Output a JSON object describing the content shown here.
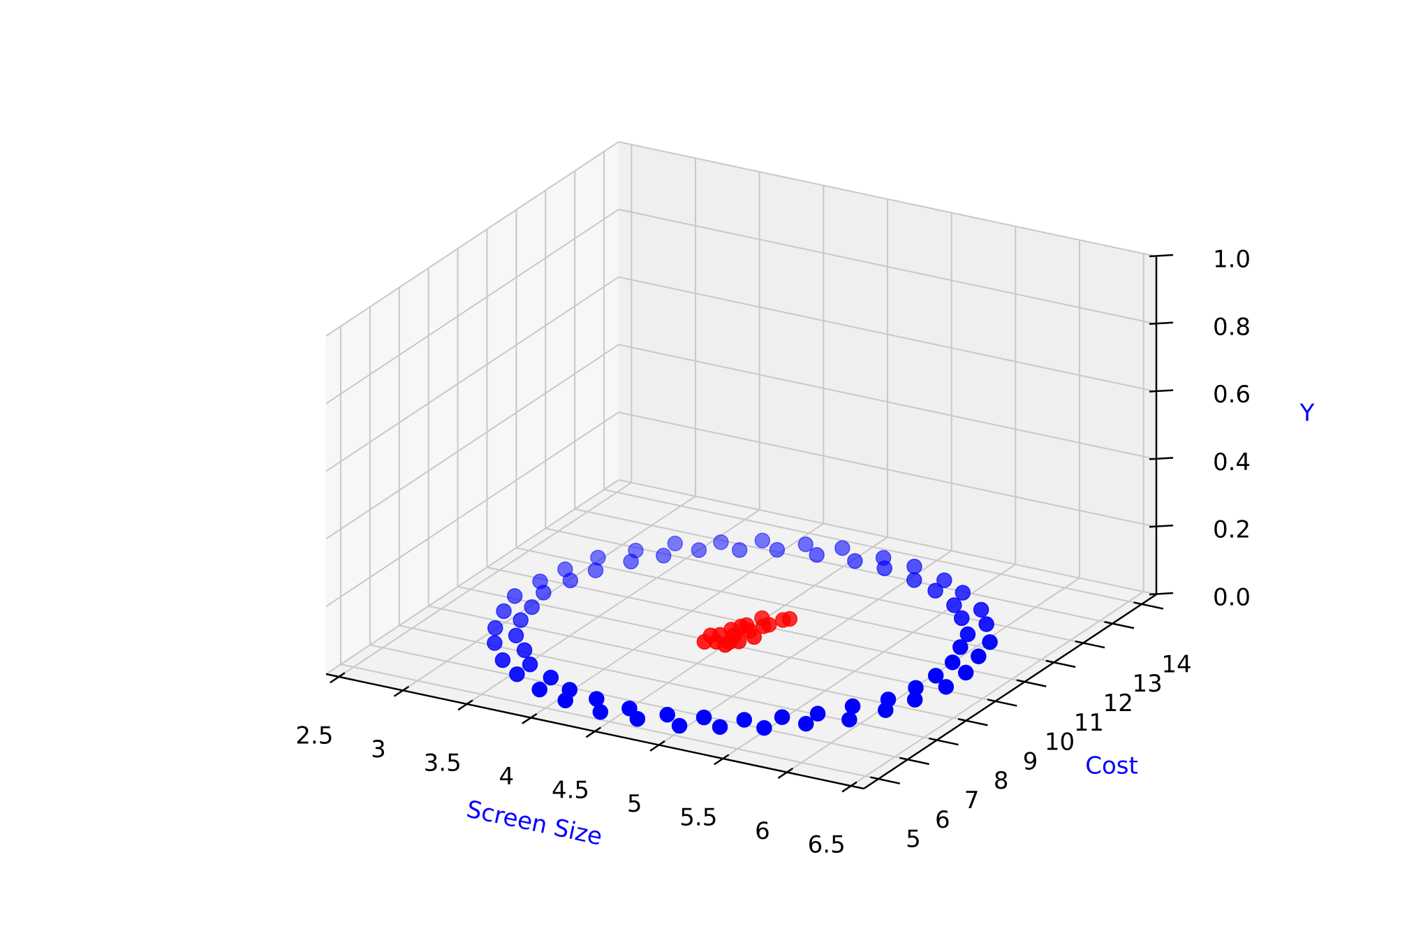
{
  "chart_data": {
    "type": "scatter3d",
    "x_label": "Screen Size",
    "y_label": "Cost",
    "z_label": "Y",
    "xlim": [
      2.4,
      6.6
    ],
    "ylim": [
      4.5,
      14.5
    ],
    "zlim": [
      0,
      1
    ],
    "xticks": [
      2.5,
      3,
      3.5,
      4,
      4.5,
      5,
      5.5,
      6,
      6.5
    ],
    "yticks": [
      5,
      6,
      7,
      8,
      9,
      10,
      11,
      12,
      13,
      14
    ],
    "zticks": [
      {
        "value": 0,
        "label": "0.0"
      },
      0.2,
      0.4,
      0.6,
      0.8,
      {
        "value": 1,
        "label": "1.0"
      }
    ],
    "grid": true,
    "depthshade": true,
    "series": [
      {
        "color": "#0000ff",
        "x": [
          6.02,
          6.0,
          5.91,
          5.84,
          5.66,
          5.5,
          5.26,
          5.04,
          4.76,
          4.52,
          4.24,
          3.96,
          3.74,
          3.5,
          3.34,
          3.2,
          3.07,
          3.01,
          2.96,
          3.02,
          3.07,
          3.18,
          3.36,
          3.52,
          3.76,
          3.98,
          4.22,
          4.5,
          4.78,
          5.02,
          5.28,
          5.48,
          5.66,
          5.8,
          5.95,
          6.01,
          6.17,
          6.1,
          6.04,
          5.86,
          5.7,
          5.44,
          5.22,
          4.92,
          4.66,
          4.33,
          4.08,
          3.79,
          3.56,
          3.3,
          3.13,
          2.97,
          2.88,
          2.84,
          2.82,
          2.89,
          2.99,
          3.12,
          3.32,
          3.53,
          3.8,
          4.05,
          4.36,
          4.64,
          4.95,
          5.2,
          5.47,
          5.68,
          5.9,
          6.03,
          6.11,
          6.18
        ],
        "y": [
          9.5,
          10.16,
          10.82,
          11.38,
          11.96,
          12.4,
          12.81,
          13.05,
          13.26,
          13.3,
          13.22,
          13.09,
          12.77,
          12.43,
          11.92,
          11.42,
          10.78,
          10.18,
          9.48,
          8.82,
          8.22,
          7.58,
          7.08,
          6.57,
          6.23,
          5.91,
          5.78,
          5.68,
          5.75,
          5.95,
          6.19,
          6.61,
          7.04,
          7.62,
          8.18,
          8.86,
          9.87,
          10.61,
          11.26,
          11.93,
          12.45,
          12.96,
          13.29,
          13.58,
          13.66,
          13.7,
          13.54,
          13.33,
          12.92,
          12.49,
          11.89,
          11.3,
          10.57,
          9.89,
          9.11,
          8.43,
          7.7,
          7.11,
          6.51,
          6.08,
          5.67,
          5.46,
          5.3,
          5.34,
          5.42,
          5.71,
          6.04,
          6.55,
          7.07,
          7.74,
          8.39,
          9.15
        ],
        "z": [
          0,
          0,
          0,
          0,
          0,
          0,
          0,
          0,
          0,
          0,
          0,
          0,
          0,
          0,
          0,
          0,
          0,
          0,
          0,
          0,
          0,
          0,
          0,
          0,
          0,
          0,
          0,
          0,
          0,
          0,
          0,
          0,
          0,
          0,
          0,
          0,
          0,
          0,
          0,
          0,
          0,
          0,
          0,
          0,
          0,
          0,
          0,
          0,
          0,
          0,
          0,
          0,
          0,
          0,
          0,
          0,
          0,
          0,
          0,
          0,
          0,
          0,
          0,
          0,
          0,
          0,
          0,
          0,
          0,
          0,
          0,
          0
        ]
      },
      {
        "color": "#ff0000",
        "x": [
          4.35,
          4.42,
          4.5,
          4.38,
          4.47,
          4.55,
          4.4,
          4.52,
          4.6,
          4.45,
          4.33,
          4.58,
          4.48,
          4.62,
          4.43,
          4.56,
          4.5,
          4.65
        ],
        "y": [
          8.9,
          9.0,
          9.1,
          9.3,
          9.4,
          9.2,
          9.6,
          9.7,
          9.5,
          9.9,
          9.2,
          10.1,
          10.3,
          10.4,
          9.8,
          10.0,
          8.95,
          10.5
        ],
        "z": [
          0,
          0,
          0,
          0,
          0,
          0,
          0,
          0,
          0,
          0,
          0,
          0,
          0,
          0,
          0,
          0,
          0,
          0
        ]
      }
    ]
  }
}
